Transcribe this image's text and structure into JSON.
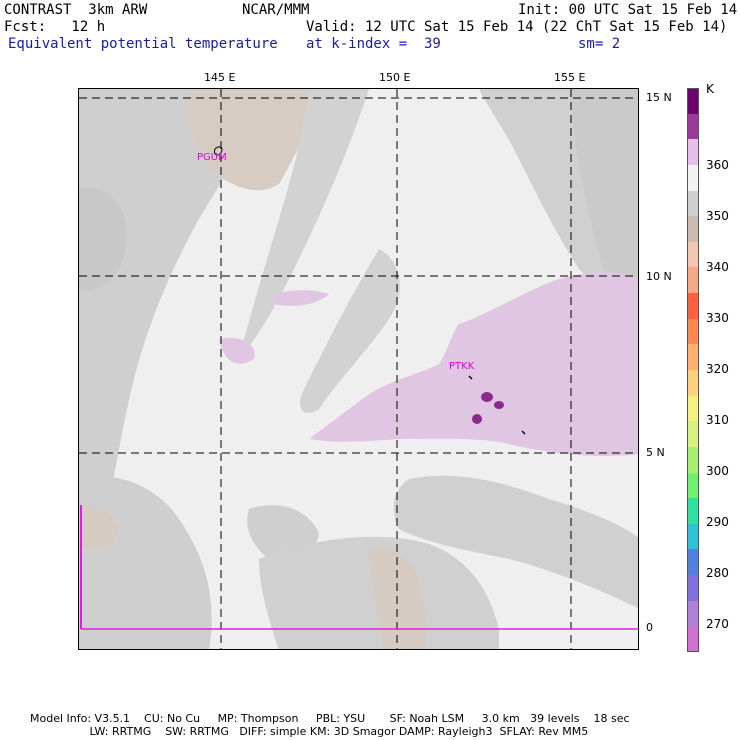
{
  "header": {
    "line1_left": "CONTRAST  3km ARW",
    "line1_center": "NCAR/MMM",
    "line1_right": "Init: 00 UTC Sat 15 Feb 14",
    "line2_left": "Fcst:   12 h",
    "line2_right": "Valid: 12 UTC Sat 15 Feb 14 (22 ChT Sat 15 Feb 14)",
    "line3_field": "Equivalent potential temperature",
    "line3_level": "at k-index =  39",
    "line3_smooth": "sm= 2"
  },
  "map": {
    "lon_labels": [
      "145 E",
      "150 E",
      "155 E"
    ],
    "lat_labels": [
      "15 N",
      "10 N",
      "5 N",
      "0"
    ],
    "stations": [
      "PGUM",
      "PTKK"
    ]
  },
  "colorbar": {
    "unit": "K",
    "labels": [
      "360",
      "350",
      "340",
      "330",
      "320",
      "310",
      "300",
      "290",
      "280",
      "270"
    ],
    "colors": [
      "#6e0070",
      "#9a3a9a",
      "#e8bde8",
      "#f2f2f2",
      "#cfcfcf",
      "#cbbcb0",
      "#f4c8b0",
      "#f5a884",
      "#ff6040",
      "#ff8850",
      "#ffb070",
      "#ffd080",
      "#f6f080",
      "#d8f080",
      "#a8f070",
      "#70f070",
      "#30e0a0",
      "#30c0d8",
      "#5080e0",
      "#8070e0",
      "#b080d8",
      "#d070d0"
    ]
  },
  "footer": {
    "line1": "Model Info: V3.5.1    CU: No Cu     MP: Thompson     PBL: YSU       SF: Noah LSM     3.0 km   39 levels    18 sec",
    "line2": "                 LW: RRTMG    SW: RRTMG   DIFF: simple KM: 3D Smagor DAMP: Rayleigh3  SFLAY: Rev MM5"
  }
}
